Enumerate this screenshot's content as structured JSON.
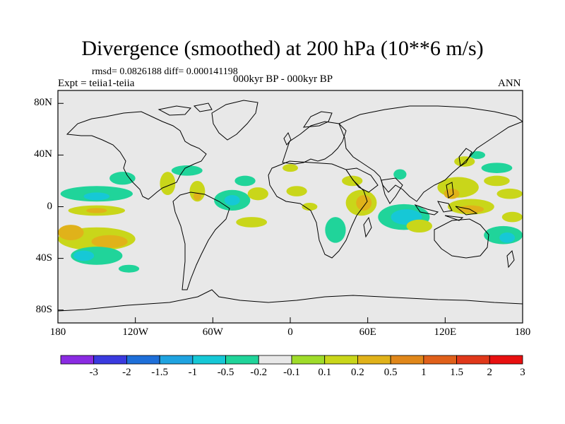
{
  "title": "Divergence (smoothed) at 200 hPa (10**6 m/s)",
  "stats": "rmsd= 0.0826188 diff= 0.000141198",
  "experiment": "Expt = teiia1-teiia",
  "period": "000kyr BP - 000kyr BP",
  "season": "ANN",
  "lat_ticks": [
    "80N",
    "40N",
    "0",
    "40S",
    "80S"
  ],
  "lon_ticks": [
    "180",
    "120W",
    "60W",
    "0",
    "60E",
    "120E",
    "180"
  ],
  "colorbar": {
    "colors": [
      "#8a2be2",
      "#3a3adf",
      "#1e6fd9",
      "#1fa3e0",
      "#16c8d6",
      "#20d49a",
      "#e8e8e8",
      "#9fdc2a",
      "#c9d61a",
      "#e0b21a",
      "#e0871a",
      "#e0601a",
      "#e0381a",
      "#e81010"
    ],
    "labels": [
      "-3",
      "-2",
      "-1.5",
      "-1",
      "-0.5",
      "-0.2",
      "-0.1",
      "0.1",
      "0.2",
      "0.5",
      "1",
      "1.5",
      "2",
      "3"
    ]
  },
  "map_data": {
    "type": "filled-contour",
    "projection": "cylindrical-equidistant",
    "lon_range": [
      -180,
      180
    ],
    "lat_range": [
      -90,
      90
    ],
    "background_color": "#e8e8e8",
    "coastline_color": "#000000",
    "anomalies": [
      {
        "lon": -150,
        "lat": -25,
        "rx": 30,
        "ry": 9,
        "level": "0.2"
      },
      {
        "lon": -140,
        "lat": -27,
        "rx": 14,
        "ry": 5,
        "level": "0.5"
      },
      {
        "lon": -170,
        "lat": -20,
        "rx": 10,
        "ry": 6,
        "level": "0.5"
      },
      {
        "lon": -150,
        "lat": -38,
        "rx": 20,
        "ry": 7,
        "level": "-0.2"
      },
      {
        "lon": -160,
        "lat": -38,
        "rx": 8,
        "ry": 4,
        "level": "-0.5"
      },
      {
        "lon": -150,
        "lat": 10,
        "rx": 28,
        "ry": 6,
        "level": "-0.2"
      },
      {
        "lon": -150,
        "lat": 8,
        "rx": 10,
        "ry": 3,
        "level": "-0.5"
      },
      {
        "lon": -130,
        "lat": 22,
        "rx": 10,
        "ry": 5,
        "level": "-0.2"
      },
      {
        "lon": -150,
        "lat": -3,
        "rx": 22,
        "ry": 4,
        "level": "0.2"
      },
      {
        "lon": -150,
        "lat": -3,
        "rx": 8,
        "ry": 2,
        "level": "0.5"
      },
      {
        "lon": -95,
        "lat": 18,
        "rx": 6,
        "ry": 9,
        "level": "0.2"
      },
      {
        "lon": -80,
        "lat": 28,
        "rx": 12,
        "ry": 4,
        "level": "-0.2"
      },
      {
        "lon": -72,
        "lat": 12,
        "rx": 6,
        "ry": 8,
        "level": "0.2"
      },
      {
        "lon": -72,
        "lat": 8,
        "rx": 3,
        "ry": 3,
        "level": "0.5"
      },
      {
        "lon": -45,
        "lat": 5,
        "rx": 14,
        "ry": 8,
        "level": "-0.2"
      },
      {
        "lon": -45,
        "lat": 5,
        "rx": 6,
        "ry": 4,
        "level": "-0.5"
      },
      {
        "lon": -35,
        "lat": 20,
        "rx": 8,
        "ry": 4,
        "level": "-0.2"
      },
      {
        "lon": -25,
        "lat": 10,
        "rx": 8,
        "ry": 5,
        "level": "0.2"
      },
      {
        "lon": -30,
        "lat": -12,
        "rx": 12,
        "ry": 4,
        "level": "0.2"
      },
      {
        "lon": 0,
        "lat": 30,
        "rx": 6,
        "ry": 3,
        "level": "0.2"
      },
      {
        "lon": 5,
        "lat": 12,
        "rx": 8,
        "ry": 4,
        "level": "0.2"
      },
      {
        "lon": 15,
        "lat": 0,
        "rx": 6,
        "ry": 3,
        "level": "0.2"
      },
      {
        "lon": 55,
        "lat": 3,
        "rx": 12,
        "ry": 10,
        "level": "0.2"
      },
      {
        "lon": 57,
        "lat": 3,
        "rx": 6,
        "ry": 6,
        "level": "0.5"
      },
      {
        "lon": 35,
        "lat": -18,
        "rx": 8,
        "ry": 10,
        "level": "-0.2"
      },
      {
        "lon": 48,
        "lat": 20,
        "rx": 8,
        "ry": 4,
        "level": "0.2"
      },
      {
        "lon": 88,
        "lat": -8,
        "rx": 20,
        "ry": 10,
        "level": "-0.2"
      },
      {
        "lon": 90,
        "lat": -8,
        "rx": 12,
        "ry": 6,
        "level": "-0.5"
      },
      {
        "lon": 100,
        "lat": -15,
        "rx": 10,
        "ry": 5,
        "level": "0.2"
      },
      {
        "lon": 85,
        "lat": 25,
        "rx": 5,
        "ry": 4,
        "level": "-0.2"
      },
      {
        "lon": 130,
        "lat": 15,
        "rx": 16,
        "ry": 8,
        "level": "0.2"
      },
      {
        "lon": 125,
        "lat": 10,
        "rx": 6,
        "ry": 4,
        "level": "0.5"
      },
      {
        "lon": 140,
        "lat": 0,
        "rx": 18,
        "ry": 6,
        "level": "0.2"
      },
      {
        "lon": 140,
        "lat": -2,
        "rx": 10,
        "ry": 3,
        "level": "0.5"
      },
      {
        "lon": 135,
        "lat": 35,
        "rx": 8,
        "ry": 4,
        "level": "0.2"
      },
      {
        "lon": 145,
        "lat": 40,
        "rx": 6,
        "ry": 3,
        "level": "-0.2"
      },
      {
        "lon": 160,
        "lat": 30,
        "rx": 12,
        "ry": 4,
        "level": "-0.2"
      },
      {
        "lon": 160,
        "lat": 20,
        "rx": 10,
        "ry": 4,
        "level": "0.2"
      },
      {
        "lon": 170,
        "lat": 10,
        "rx": 10,
        "ry": 4,
        "level": "0.2"
      },
      {
        "lon": 165,
        "lat": -22,
        "rx": 15,
        "ry": 7,
        "level": "-0.2"
      },
      {
        "lon": 168,
        "lat": -24,
        "rx": 6,
        "ry": 4,
        "level": "-0.5"
      },
      {
        "lon": 172,
        "lat": -8,
        "rx": 8,
        "ry": 4,
        "level": "0.2"
      },
      {
        "lon": -125,
        "lat": -48,
        "rx": 8,
        "ry": 3,
        "level": "-0.2"
      }
    ]
  }
}
